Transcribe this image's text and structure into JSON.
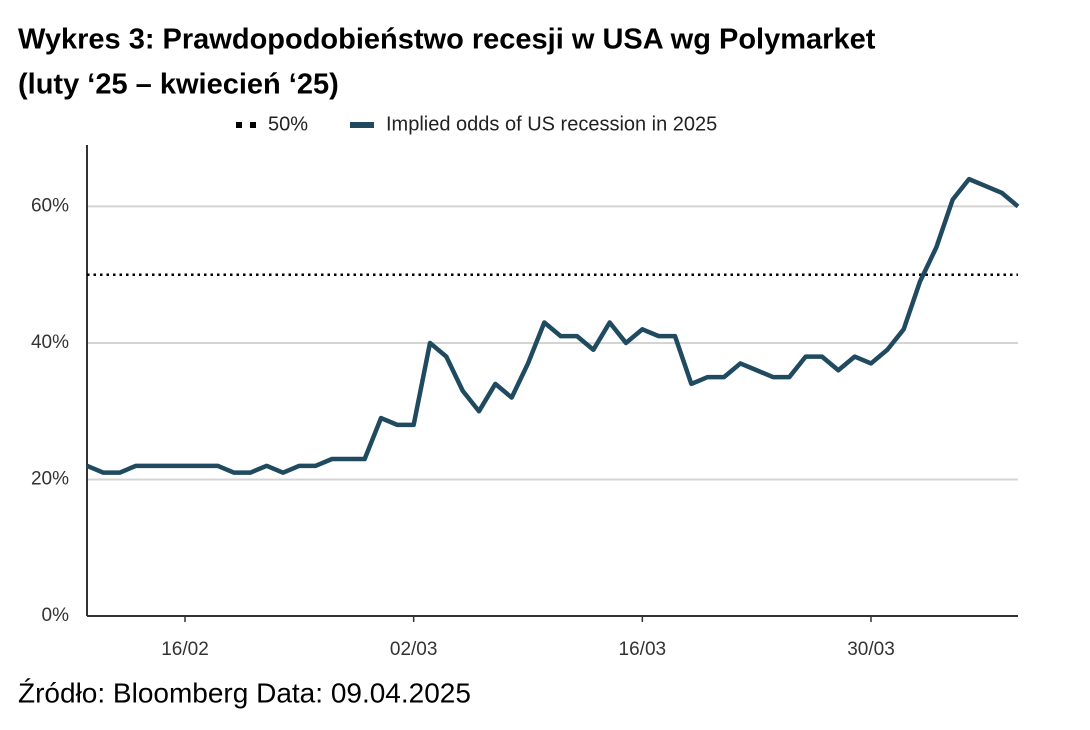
{
  "chart_data": {
    "type": "line",
    "title": [
      "Wykres 3: Prawdopodobieństwo recesji w USA wg Polymarket",
      "(luty ‘25 – kwiecień ‘25)"
    ],
    "source": "Źródło: Bloomberg Data: 09.04.2025",
    "categories": [
      null,
      null,
      null,
      null,
      null,
      null,
      "16/02",
      null,
      null,
      null,
      null,
      null,
      null,
      null,
      null,
      null,
      null,
      null,
      null,
      null,
      "02/03",
      null,
      null,
      null,
      null,
      null,
      null,
      null,
      null,
      null,
      null,
      null,
      null,
      null,
      "16/03",
      null,
      null,
      null,
      null,
      null,
      null,
      null,
      null,
      null,
      null,
      null,
      null,
      null,
      "30/03",
      null,
      null,
      null,
      null,
      null,
      null,
      null,
      null,
      null
    ],
    "series": [
      {
        "name": "Implied odds of US recession in 2025",
        "color": "#1f4a60",
        "values": [
          22,
          21,
          21,
          22,
          22,
          22,
          22,
          22,
          22,
          21,
          21,
          22,
          21,
          22,
          22,
          23,
          23,
          23,
          29,
          28,
          28,
          40,
          38,
          33,
          30,
          34,
          32,
          37,
          43,
          41,
          41,
          39,
          43,
          40,
          42,
          41,
          41,
          34,
          35,
          35,
          37,
          36,
          35,
          35,
          38,
          38,
          36,
          38,
          37,
          39,
          42,
          49,
          54,
          61,
          64,
          63,
          62,
          60
        ]
      }
    ],
    "reference_line": {
      "name": "50%",
      "value": 50,
      "color": "#000000"
    },
    "ylim": [
      0,
      69
    ],
    "yticks": [
      {
        "value": 0,
        "label": "0%"
      },
      {
        "value": 20,
        "label": "20%"
      },
      {
        "value": 40,
        "label": "40%"
      },
      {
        "value": 60,
        "label": "60%"
      }
    ],
    "grid": true
  }
}
